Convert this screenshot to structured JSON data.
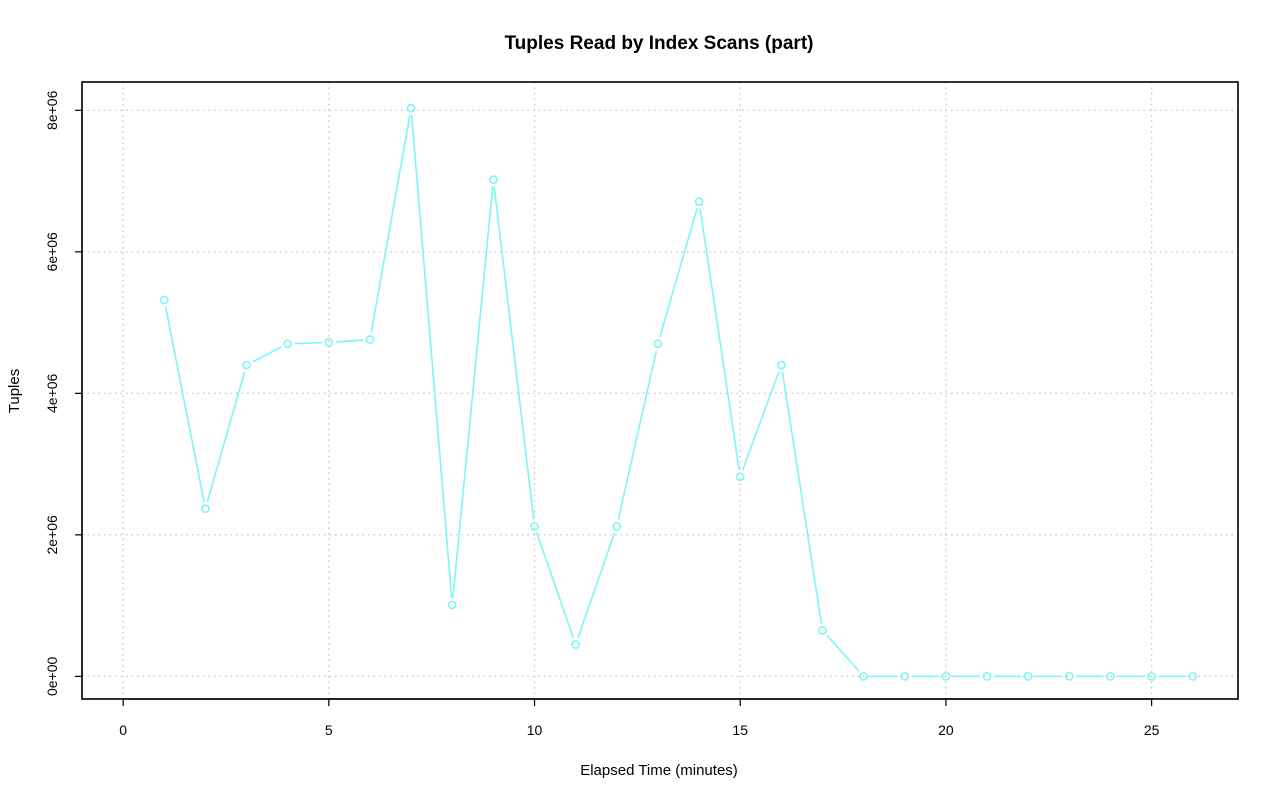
{
  "chart_data": {
    "type": "line",
    "title": "Tuples Read by Index Scans (part)",
    "xlabel": "Elapsed Time (minutes)",
    "ylabel": "Tuples",
    "xlim": [
      -1,
      27.1
    ],
    "ylim": [
      -320000,
      8400000
    ],
    "x_ticks": [
      0,
      5,
      10,
      15,
      20,
      25
    ],
    "x_tick_labels": [
      "0",
      "5",
      "10",
      "15",
      "20",
      "25"
    ],
    "y_ticks": [
      0,
      2000000,
      4000000,
      6000000,
      8000000
    ],
    "y_tick_labels": [
      "0e+00",
      "2e+06",
      "4e+06",
      "6e+06",
      "8e+06"
    ],
    "grid": true,
    "line_color": "#7ff5f5",
    "series": [
      {
        "x": [
          1,
          2,
          3,
          4,
          5,
          6,
          7,
          8,
          9,
          10,
          11,
          12,
          13,
          14,
          15,
          16,
          17,
          18,
          19,
          20,
          21,
          22,
          23,
          24,
          25,
          26
        ],
        "values": [
          5320000,
          2370000,
          4400000,
          4700000,
          4720000,
          4760000,
          8030000,
          1010000,
          7020000,
          2120000,
          450000,
          2120000,
          4700000,
          6710000,
          2820000,
          4400000,
          650000,
          0,
          0,
          0,
          0,
          0,
          0,
          0,
          0,
          0
        ]
      }
    ]
  }
}
